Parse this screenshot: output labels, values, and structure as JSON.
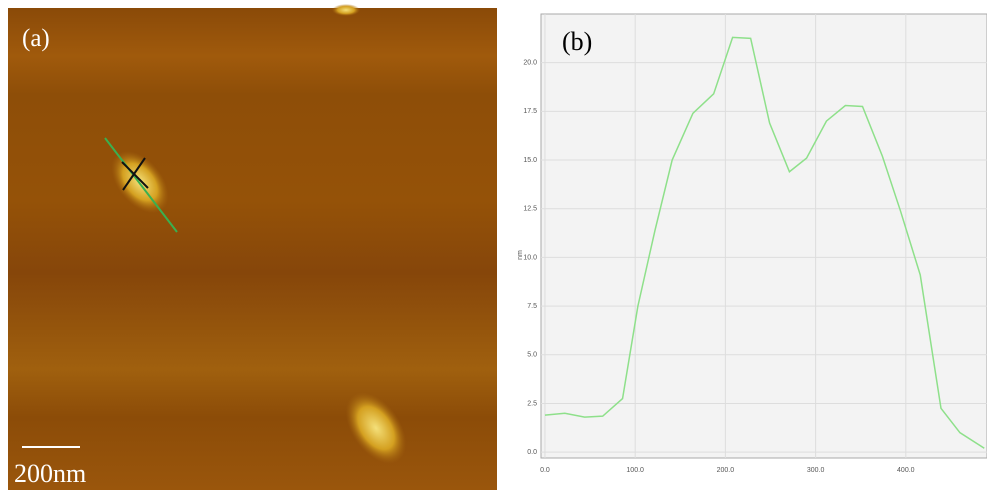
{
  "image": {
    "label": "(a)",
    "scale_bar": "200nm"
  },
  "chart_data": {
    "type": "line",
    "label": "(b)",
    "y_label": "nm",
    "x": [
      0,
      22,
      44,
      64,
      86,
      103,
      122,
      141,
      164,
      187,
      208,
      228,
      249,
      271,
      290,
      312,
      333,
      352,
      374,
      394,
      416,
      439,
      460,
      487
    ],
    "series": [
      {
        "color": "#8ee08a",
        "values": [
          1.9,
          2.0,
          1.8,
          1.85,
          2.75,
          7.5,
          11.4,
          15.0,
          17.4,
          18.4,
          21.3,
          21.25,
          16.9,
          14.4,
          15.1,
          17.0,
          17.8,
          17.75,
          15.2,
          12.4,
          9.1,
          2.25,
          1.0,
          0.2
        ]
      }
    ],
    "xlim": [
      -4.4,
      490
    ],
    "ylim": [
      -0.3,
      22.5
    ],
    "xticks": [
      {
        "value": 0,
        "label": "0.0"
      },
      {
        "value": 100,
        "label": "100.0"
      },
      {
        "value": 200,
        "label": "200.0"
      },
      {
        "value": 300,
        "label": "300.0"
      },
      {
        "value": 400,
        "label": "400.0"
      }
    ],
    "yticks": [
      {
        "value": 0,
        "label": "0.0"
      },
      2.5,
      {
        "value": 5,
        "label": "5.0"
      },
      7.5,
      {
        "value": 10,
        "label": "10.0"
      },
      12.5,
      {
        "value": 15,
        "label": "15.0"
      },
      17.5,
      {
        "value": 20,
        "label": "20.0"
      }
    ],
    "grid": true
  }
}
